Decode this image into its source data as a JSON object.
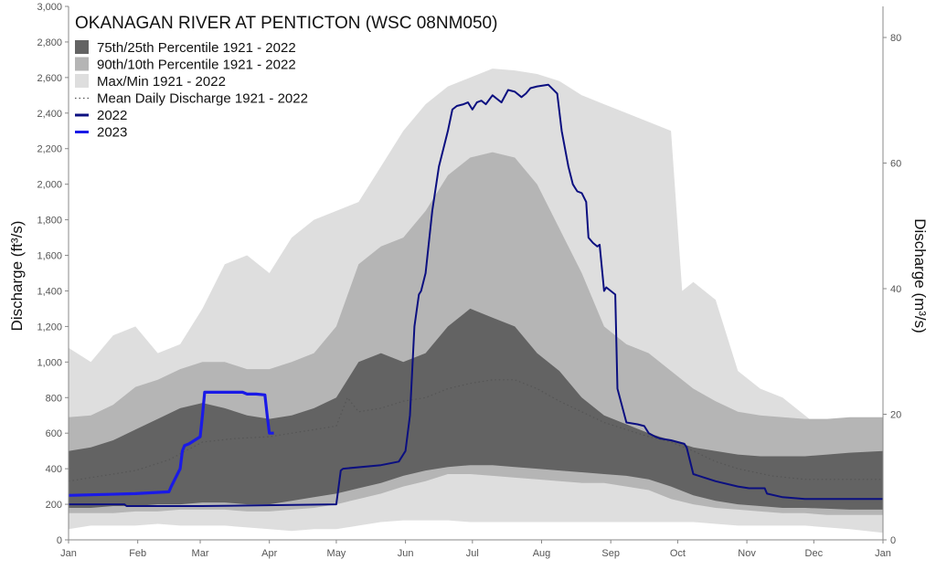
{
  "chart_data": {
    "type": "area",
    "title": "OKANAGAN RIVER AT PENTICTON (WSC 08NM050)",
    "ylabel_left": "Discharge (ft³/s)",
    "ylabel_right": "Discharge (m³/s)",
    "ylim_left": [
      0,
      3000
    ],
    "ylim_right": [
      0,
      84.95
    ],
    "yticks_left": [
      "0",
      "200",
      "400",
      "600",
      "800",
      "1,000",
      "1,200",
      "1,400",
      "1,600",
      "1,800",
      "2,000",
      "2,200",
      "2,400",
      "2,600",
      "2,800",
      "3,000"
    ],
    "yticks_right": [
      "0",
      "20",
      "40",
      "60",
      "80"
    ],
    "xticks": [
      "Jan",
      "Feb",
      "Mar",
      "Apr",
      "May",
      "Jun",
      "Jul",
      "Aug",
      "Sep",
      "Oct",
      "Nov",
      "Dec",
      "Jan"
    ],
    "xlim_days": [
      0,
      365
    ],
    "legend": [
      {
        "label": "75th/25th Percentile 1921 - 2022",
        "kind": "fill",
        "color": "#636363"
      },
      {
        "label": "90th/10th Percentile 1921 - 2022",
        "kind": "fill",
        "color": "#b5b5b5"
      },
      {
        "label": "Max/Min 1921 - 2022",
        "kind": "fill",
        "color": "#dedede"
      },
      {
        "label": "Mean Daily Discharge 1921 - 2022",
        "kind": "dotted",
        "color": "#555555"
      },
      {
        "label": "2022",
        "kind": "line",
        "color": "#0b0f80"
      },
      {
        "label": "2023",
        "kind": "line",
        "color": "#1a1ae6"
      }
    ],
    "x_unit": "day of year",
    "bands": {
      "max_min": {
        "x": [
          0,
          10,
          20,
          30,
          40,
          50,
          60,
          70,
          80,
          90,
          100,
          110,
          120,
          130,
          140,
          150,
          160,
          170,
          180,
          190,
          200,
          210,
          220,
          230,
          240,
          250,
          260,
          270,
          275,
          280,
          290,
          300,
          310,
          320,
          330,
          340,
          350,
          365
        ],
        "upper": [
          1080,
          1000,
          1150,
          1200,
          1050,
          1100,
          1300,
          1550,
          1600,
          1500,
          1700,
          1800,
          1850,
          1900,
          2100,
          2300,
          2450,
          2550,
          2600,
          2650,
          2640,
          2620,
          2580,
          2500,
          2450,
          2400,
          2350,
          2300,
          1400,
          1450,
          1350,
          950,
          850,
          800,
          700,
          600,
          450,
          320
        ],
        "lower": [
          60,
          80,
          80,
          80,
          90,
          80,
          80,
          80,
          70,
          60,
          50,
          60,
          60,
          80,
          100,
          110,
          110,
          110,
          100,
          100,
          100,
          100,
          100,
          100,
          100,
          100,
          100,
          100,
          100,
          100,
          90,
          80,
          80,
          80,
          80,
          70,
          60,
          40
        ]
      },
      "p90_p10": {
        "x": [
          0,
          10,
          20,
          30,
          40,
          50,
          60,
          70,
          80,
          90,
          100,
          110,
          120,
          130,
          140,
          150,
          160,
          170,
          180,
          190,
          200,
          210,
          220,
          230,
          240,
          250,
          260,
          270,
          280,
          290,
          300,
          310,
          320,
          330,
          340,
          350,
          365
        ],
        "upper": [
          690,
          700,
          760,
          860,
          900,
          960,
          1000,
          1000,
          960,
          960,
          1000,
          1050,
          1200,
          1550,
          1650,
          1700,
          1850,
          2050,
          2150,
          2180,
          2150,
          2000,
          1750,
          1500,
          1200,
          1100,
          1050,
          950,
          850,
          780,
          720,
          700,
          690,
          680,
          680,
          690,
          690
        ],
        "lower": [
          150,
          150,
          150,
          160,
          160,
          170,
          170,
          170,
          160,
          160,
          170,
          180,
          200,
          230,
          260,
          300,
          330,
          370,
          370,
          360,
          350,
          340,
          330,
          320,
          320,
          300,
          280,
          230,
          200,
          180,
          170,
          160,
          150,
          150,
          140,
          140,
          140
        ]
      },
      "p75_p25": {
        "x": [
          0,
          10,
          20,
          30,
          40,
          50,
          60,
          70,
          80,
          90,
          100,
          110,
          120,
          130,
          140,
          150,
          160,
          170,
          180,
          190,
          200,
          210,
          220,
          230,
          240,
          250,
          260,
          270,
          280,
          290,
          300,
          310,
          320,
          330,
          340,
          350,
          365
        ],
        "upper": [
          500,
          520,
          560,
          620,
          680,
          740,
          770,
          740,
          700,
          680,
          700,
          740,
          800,
          1000,
          1050,
          1000,
          1050,
          1200,
          1300,
          1250,
          1200,
          1050,
          950,
          800,
          700,
          650,
          600,
          560,
          520,
          500,
          480,
          470,
          470,
          470,
          480,
          490,
          500
        ],
        "lower": [
          180,
          180,
          190,
          190,
          200,
          200,
          210,
          210,
          200,
          200,
          220,
          240,
          260,
          290,
          320,
          360,
          390,
          410,
          420,
          420,
          410,
          400,
          390,
          380,
          370,
          360,
          340,
          300,
          250,
          220,
          200,
          190,
          180,
          180,
          175,
          170,
          170
        ]
      }
    },
    "series": [
      {
        "name": "Mean Daily Discharge 1921 - 2022",
        "x": [
          0,
          15,
          30,
          45,
          60,
          75,
          90,
          105,
          120,
          125,
          130,
          140,
          150,
          160,
          170,
          180,
          190,
          200,
          210,
          220,
          230,
          240,
          250,
          260,
          270,
          280,
          290,
          300,
          315,
          330,
          345,
          365
        ],
        "y": [
          330,
          360,
          390,
          450,
          550,
          570,
          580,
          610,
          640,
          800,
          720,
          740,
          780,
          800,
          850,
          880,
          900,
          900,
          850,
          780,
          720,
          660,
          620,
          580,
          550,
          500,
          440,
          400,
          360,
          340,
          340,
          340
        ]
      },
      {
        "name": "2022",
        "x": [
          0,
          25,
          26,
          60,
          120,
          122,
          123,
          140,
          148,
          151,
          153,
          155,
          157,
          158,
          160,
          163,
          166,
          168,
          170,
          172,
          174,
          177,
          179,
          181,
          183,
          185,
          187,
          190,
          194,
          197,
          200,
          203,
          205,
          207,
          210,
          215,
          219,
          221,
          224,
          226,
          227,
          228,
          230,
          232,
          233,
          235,
          236,
          237,
          238,
          240,
          241,
          242,
          243,
          245,
          246,
          250,
          255,
          258,
          260,
          263,
          265,
          270,
          276,
          277,
          280,
          285,
          290,
          300,
          305,
          312,
          313,
          320,
          330,
          345,
          365
        ],
        "y": [
          200,
          200,
          190,
          190,
          200,
          390,
          400,
          420,
          440,
          500,
          700,
          1200,
          1380,
          1400,
          1500,
          1850,
          2100,
          2200,
          2300,
          2420,
          2440,
          2450,
          2460,
          2420,
          2460,
          2470,
          2450,
          2500,
          2460,
          2530,
          2520,
          2490,
          2510,
          2540,
          2550,
          2560,
          2510,
          2300,
          2100,
          2000,
          1980,
          1960,
          1950,
          1900,
          1700,
          1670,
          1660,
          1650,
          1660,
          1400,
          1420,
          1410,
          1400,
          1380,
          850,
          660,
          650,
          640,
          600,
          580,
          570,
          560,
          540,
          520,
          370,
          350,
          330,
          300,
          290,
          290,
          260,
          240,
          230,
          230,
          230
        ]
      },
      {
        "name": "2023",
        "x": [
          0,
          30,
          45,
          46,
          50,
          51,
          52,
          54,
          59,
          60,
          61,
          70,
          78,
          79,
          80,
          84,
          88,
          89,
          90,
          91,
          92
        ],
        "y": [
          250,
          260,
          270,
          300,
          400,
          500,
          530,
          540,
          580,
          700,
          830,
          830,
          830,
          825,
          820,
          820,
          815,
          700,
          600,
          600,
          600
        ]
      }
    ]
  }
}
